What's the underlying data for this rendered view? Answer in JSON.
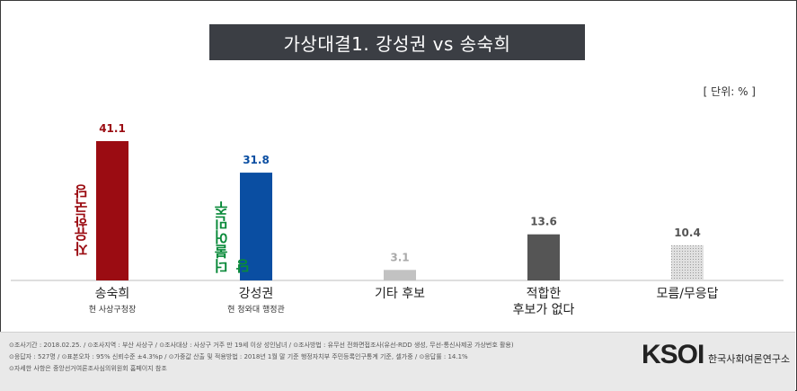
{
  "title": "가상대결1. 강성권 vs 송숙희",
  "unit": "[ 단위: % ]",
  "chart_data": {
    "type": "bar",
    "categories": [
      "송숙희",
      "강성권",
      "기타 후보",
      "적합한 후보가 없다",
      "모름/무응답"
    ],
    "category_lines": [
      [
        "송숙희"
      ],
      [
        "강성권"
      ],
      [
        "기타 후보"
      ],
      [
        "적합한",
        "후보가 없다"
      ],
      [
        "모름/무응답"
      ]
    ],
    "subtitles": [
      "현 사상구청장",
      "현 청와대 행정관",
      "",
      "",
      ""
    ],
    "values": [
      41.1,
      31.8,
      3.1,
      13.6,
      10.4
    ],
    "value_labels": [
      "41.1",
      "31.8",
      "3.1",
      "13.6",
      "10.4"
    ],
    "bar_colors": [
      "#9b0c12",
      "#0a4ea2",
      "#c2c2c2",
      "#555555",
      "#d6d6d6"
    ],
    "label_colors": [
      "#9b0c12",
      "#0a4ea2",
      "#aaaaaa",
      "#555555",
      "#555555"
    ],
    "ylim": [
      0,
      45
    ]
  },
  "parties": {
    "p1": "자유한국당",
    "p2": "더불어민주당"
  },
  "footer": {
    "line1": "⊙조사기간 : 2018.02.25.  / ⊙조사지역 : 부산 사상구 / ⊙조사대상 : 사상구 거주 만 19세 이상 성인남녀 / ⊙조사방법 : 유무선 전화면접조사(유선-RDD 생성, 무선-통신사제공 가상번호 활용)",
    "line2": "⊙응답자 : 527명 / ⊙표본오차 : 95% 신뢰수준 ±4.3%p / ⊙가중값 산출 및 적용방법 : 2018년 1월 말 기준 행정자치부 주민등록인구통계 기준, 셀가중 / ⊙응답률 : 14.1%",
    "line3": "⊙자세한 사항은 중앙선거여론조사심의위원회 홈페이지 참조"
  },
  "logo": {
    "ksoi": "KSOI",
    "name": "한국사회여론연구소"
  }
}
